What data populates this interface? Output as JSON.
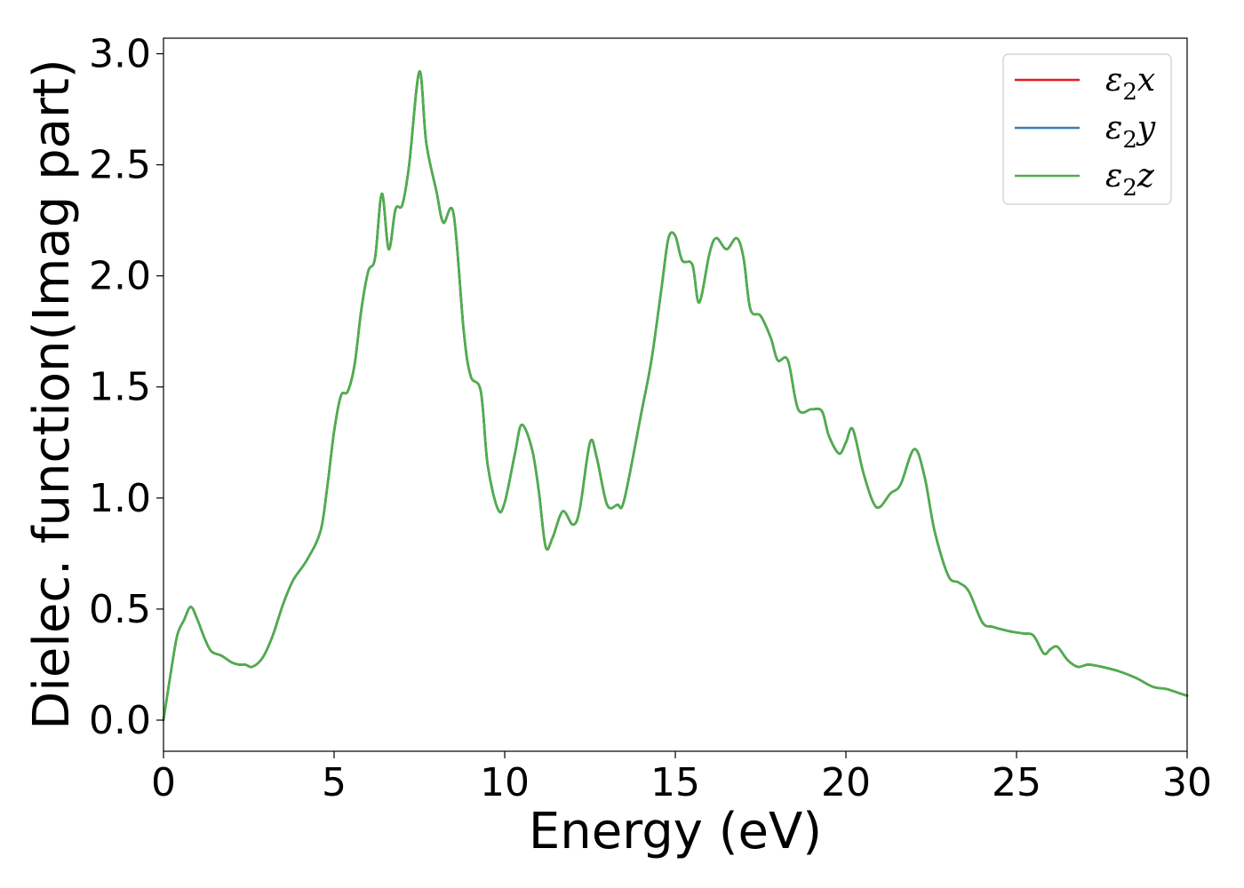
{
  "chart_data": {
    "type": "line",
    "title": "",
    "xlabel": "Energy (eV)",
    "ylabel": "Dielec. function(Imag part)",
    "xlim": [
      0,
      30
    ],
    "ylim": [
      -0.14,
      3.07
    ],
    "xticks": [
      "0",
      "5",
      "10",
      "15",
      "20",
      "25",
      "30"
    ],
    "yticks": [
      "0.0",
      "0.5",
      "1.0",
      "1.5",
      "2.0",
      "2.5",
      "3.0"
    ],
    "grid": false,
    "legend_position": "top-right",
    "series": [
      {
        "name": "ε₂x",
        "legend_base": "ε",
        "legend_sub": "2",
        "legend_suffix": "x",
        "color": "#e41a1c",
        "x": [
          0,
          0.2,
          0.4,
          0.6,
          0.8,
          1.0,
          1.2,
          1.4,
          1.7,
          2.0,
          2.2,
          2.4,
          2.6,
          2.9,
          3.2,
          3.5,
          3.8,
          4.2,
          4.6,
          4.8,
          5.0,
          5.2,
          5.4,
          5.6,
          5.8,
          6.0,
          6.2,
          6.4,
          6.6,
          6.8,
          7.0,
          7.2,
          7.5,
          7.7,
          8.0,
          8.2,
          8.5,
          8.8,
          9.0,
          9.3,
          9.5,
          9.8,
          10.0,
          10.3,
          10.5,
          10.8,
          11.0,
          11.2,
          11.4,
          11.7,
          12.0,
          12.2,
          12.5,
          12.7,
          13.0,
          13.3,
          13.5,
          14.0,
          14.3,
          14.6,
          14.8,
          15.0,
          15.2,
          15.5,
          15.7,
          16.0,
          16.2,
          16.5,
          16.8,
          17.0,
          17.2,
          17.5,
          17.8,
          18.0,
          18.3,
          18.6,
          19.0,
          19.3,
          19.5,
          19.8,
          20.0,
          20.2,
          20.5,
          20.8,
          21.0,
          21.3,
          21.6,
          22.0,
          22.3,
          22.6,
          23.0,
          23.3,
          23.6,
          24.0,
          24.3,
          24.8,
          25.2,
          25.5,
          25.8,
          26.0,
          26.2,
          26.5,
          26.8,
          27.1,
          27.5,
          28.0,
          28.5,
          29.0,
          29.4,
          29.8,
          30.0
        ],
        "y": [
          0.0,
          0.2,
          0.38,
          0.45,
          0.51,
          0.45,
          0.37,
          0.31,
          0.29,
          0.26,
          0.25,
          0.25,
          0.24,
          0.28,
          0.38,
          0.52,
          0.63,
          0.72,
          0.85,
          1.05,
          1.3,
          1.46,
          1.48,
          1.6,
          1.85,
          2.02,
          2.08,
          2.37,
          2.12,
          2.3,
          2.32,
          2.5,
          2.92,
          2.6,
          2.38,
          2.24,
          2.28,
          1.75,
          1.55,
          1.48,
          1.15,
          0.95,
          0.98,
          1.2,
          1.33,
          1.22,
          1.03,
          0.78,
          0.82,
          0.94,
          0.88,
          0.95,
          1.25,
          1.18,
          0.97,
          0.97,
          0.99,
          1.38,
          1.62,
          1.95,
          2.17,
          2.18,
          2.07,
          2.05,
          1.88,
          2.1,
          2.17,
          2.12,
          2.17,
          2.08,
          1.85,
          1.82,
          1.72,
          1.62,
          1.62,
          1.4,
          1.4,
          1.39,
          1.28,
          1.2,
          1.25,
          1.31,
          1.12,
          0.98,
          0.96,
          1.02,
          1.06,
          1.22,
          1.1,
          0.85,
          0.65,
          0.62,
          0.58,
          0.44,
          0.42,
          0.4,
          0.39,
          0.38,
          0.3,
          0.32,
          0.33,
          0.27,
          0.24,
          0.25,
          0.24,
          0.22,
          0.19,
          0.15,
          0.14,
          0.12,
          0.11
        ]
      },
      {
        "name": "ε₂y",
        "legend_base": "ε",
        "legend_sub": "2",
        "legend_suffix": "y",
        "color": "#377eb8",
        "x": [
          0,
          0.2,
          0.4,
          0.6,
          0.8,
          1.0,
          1.2,
          1.4,
          1.7,
          2.0,
          2.2,
          2.4,
          2.6,
          2.9,
          3.2,
          3.5,
          3.8,
          4.2,
          4.6,
          4.8,
          5.0,
          5.2,
          5.4,
          5.6,
          5.8,
          6.0,
          6.2,
          6.4,
          6.6,
          6.8,
          7.0,
          7.2,
          7.5,
          7.7,
          8.0,
          8.2,
          8.5,
          8.8,
          9.0,
          9.3,
          9.5,
          9.8,
          10.0,
          10.3,
          10.5,
          10.8,
          11.0,
          11.2,
          11.4,
          11.7,
          12.0,
          12.2,
          12.5,
          12.7,
          13.0,
          13.3,
          13.5,
          14.0,
          14.3,
          14.6,
          14.8,
          15.0,
          15.2,
          15.5,
          15.7,
          16.0,
          16.2,
          16.5,
          16.8,
          17.0,
          17.2,
          17.5,
          17.8,
          18.0,
          18.3,
          18.6,
          19.0,
          19.3,
          19.5,
          19.8,
          20.0,
          20.2,
          20.5,
          20.8,
          21.0,
          21.3,
          21.6,
          22.0,
          22.3,
          22.6,
          23.0,
          23.3,
          23.6,
          24.0,
          24.3,
          24.8,
          25.2,
          25.5,
          25.8,
          26.0,
          26.2,
          26.5,
          26.8,
          27.1,
          27.5,
          28.0,
          28.5,
          29.0,
          29.4,
          29.8,
          30.0
        ],
        "y": [
          0.0,
          0.2,
          0.38,
          0.45,
          0.51,
          0.45,
          0.37,
          0.31,
          0.29,
          0.26,
          0.25,
          0.25,
          0.24,
          0.28,
          0.38,
          0.52,
          0.63,
          0.72,
          0.85,
          1.05,
          1.3,
          1.46,
          1.48,
          1.6,
          1.85,
          2.02,
          2.08,
          2.37,
          2.12,
          2.3,
          2.32,
          2.5,
          2.92,
          2.6,
          2.38,
          2.24,
          2.28,
          1.75,
          1.55,
          1.48,
          1.15,
          0.95,
          0.98,
          1.2,
          1.33,
          1.22,
          1.03,
          0.78,
          0.82,
          0.94,
          0.88,
          0.95,
          1.25,
          1.18,
          0.97,
          0.97,
          0.99,
          1.38,
          1.62,
          1.95,
          2.17,
          2.18,
          2.07,
          2.05,
          1.88,
          2.1,
          2.17,
          2.12,
          2.17,
          2.08,
          1.85,
          1.82,
          1.72,
          1.62,
          1.62,
          1.4,
          1.4,
          1.39,
          1.28,
          1.2,
          1.25,
          1.31,
          1.12,
          0.98,
          0.96,
          1.02,
          1.06,
          1.22,
          1.1,
          0.85,
          0.65,
          0.62,
          0.58,
          0.44,
          0.42,
          0.4,
          0.39,
          0.38,
          0.3,
          0.32,
          0.33,
          0.27,
          0.24,
          0.25,
          0.24,
          0.22,
          0.19,
          0.15,
          0.14,
          0.12,
          0.11
        ]
      },
      {
        "name": "ε₂z",
        "legend_base": "ε",
        "legend_sub": "2",
        "legend_suffix": "z",
        "color": "#4daf4a",
        "x": [
          0,
          0.2,
          0.4,
          0.6,
          0.8,
          1.0,
          1.2,
          1.4,
          1.7,
          2.0,
          2.2,
          2.4,
          2.6,
          2.9,
          3.2,
          3.5,
          3.8,
          4.2,
          4.6,
          4.8,
          5.0,
          5.2,
          5.4,
          5.6,
          5.8,
          6.0,
          6.2,
          6.4,
          6.6,
          6.8,
          7.0,
          7.2,
          7.5,
          7.7,
          8.0,
          8.2,
          8.5,
          8.8,
          9.0,
          9.3,
          9.5,
          9.8,
          10.0,
          10.3,
          10.5,
          10.8,
          11.0,
          11.2,
          11.4,
          11.7,
          12.0,
          12.2,
          12.5,
          12.7,
          13.0,
          13.3,
          13.5,
          14.0,
          14.3,
          14.6,
          14.8,
          15.0,
          15.2,
          15.5,
          15.7,
          16.0,
          16.2,
          16.5,
          16.8,
          17.0,
          17.2,
          17.5,
          17.8,
          18.0,
          18.3,
          18.6,
          19.0,
          19.3,
          19.5,
          19.8,
          20.0,
          20.2,
          20.5,
          20.8,
          21.0,
          21.3,
          21.6,
          22.0,
          22.3,
          22.6,
          23.0,
          23.3,
          23.6,
          24.0,
          24.3,
          24.8,
          25.2,
          25.5,
          25.8,
          26.0,
          26.2,
          26.5,
          26.8,
          27.1,
          27.5,
          28.0,
          28.5,
          29.0,
          29.4,
          29.8,
          30.0
        ],
        "y": [
          0.0,
          0.2,
          0.38,
          0.45,
          0.51,
          0.45,
          0.37,
          0.31,
          0.29,
          0.26,
          0.25,
          0.25,
          0.24,
          0.28,
          0.38,
          0.52,
          0.63,
          0.72,
          0.85,
          1.05,
          1.3,
          1.46,
          1.48,
          1.6,
          1.85,
          2.02,
          2.08,
          2.37,
          2.12,
          2.3,
          2.32,
          2.5,
          2.92,
          2.6,
          2.38,
          2.24,
          2.28,
          1.75,
          1.55,
          1.48,
          1.15,
          0.95,
          0.98,
          1.2,
          1.33,
          1.22,
          1.03,
          0.78,
          0.82,
          0.94,
          0.88,
          0.95,
          1.25,
          1.18,
          0.97,
          0.97,
          0.99,
          1.38,
          1.62,
          1.95,
          2.17,
          2.18,
          2.07,
          2.05,
          1.88,
          2.1,
          2.17,
          2.12,
          2.17,
          2.08,
          1.85,
          1.82,
          1.72,
          1.62,
          1.62,
          1.4,
          1.4,
          1.39,
          1.28,
          1.2,
          1.25,
          1.31,
          1.12,
          0.98,
          0.96,
          1.02,
          1.06,
          1.22,
          1.1,
          0.85,
          0.65,
          0.62,
          0.58,
          0.44,
          0.42,
          0.4,
          0.39,
          0.38,
          0.3,
          0.32,
          0.33,
          0.27,
          0.24,
          0.25,
          0.24,
          0.22,
          0.19,
          0.15,
          0.14,
          0.12,
          0.11
        ]
      }
    ]
  }
}
